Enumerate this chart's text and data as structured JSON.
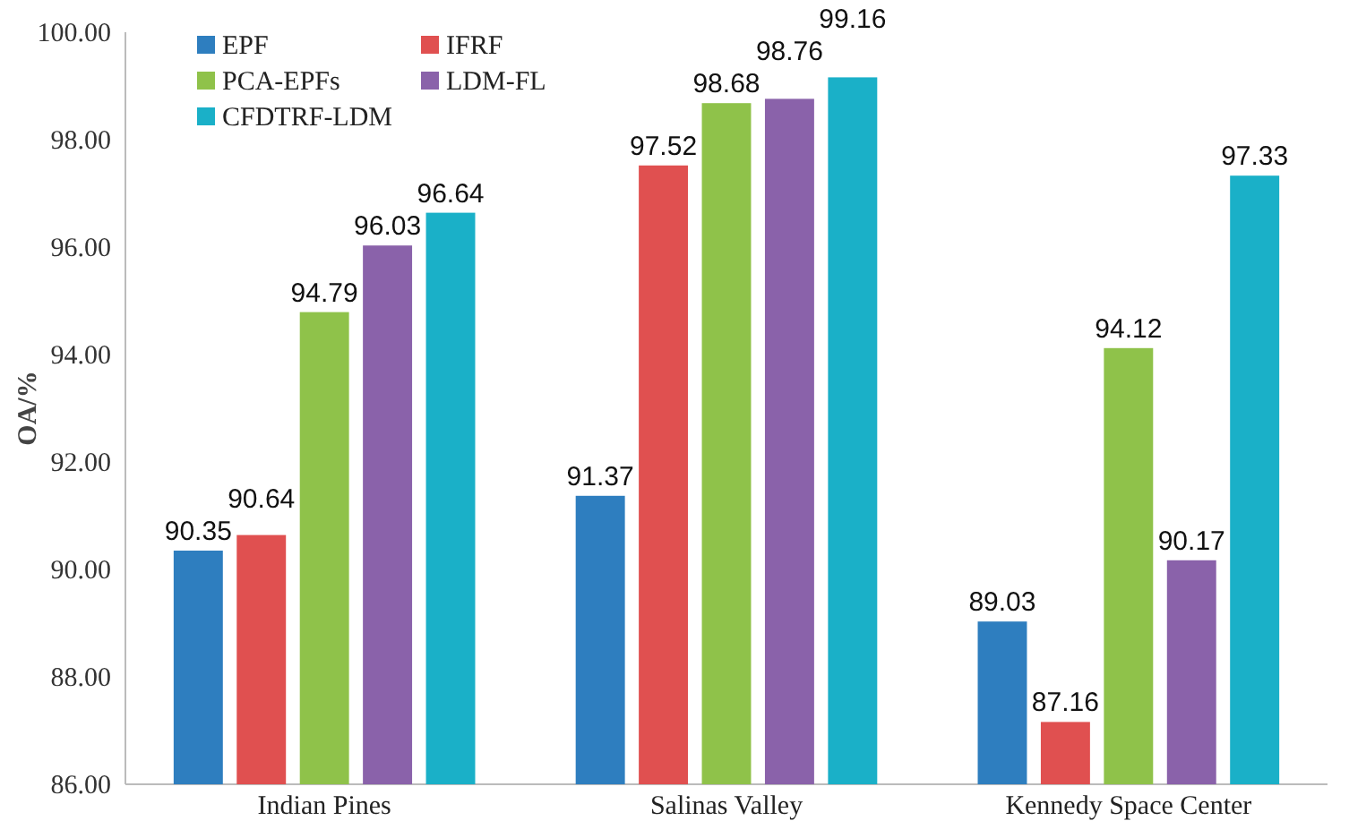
{
  "chart_data": {
    "type": "bar",
    "ylabel": "OA/%",
    "categories": [
      "Indian Pines",
      "Salinas Valley",
      "Kennedy Space Center"
    ],
    "series": [
      {
        "name": "EPF",
        "color": "#2e7ebf",
        "values": [
          90.35,
          91.37,
          89.03
        ]
      },
      {
        "name": "IFRF",
        "color": "#e05050",
        "values": [
          90.64,
          97.52,
          87.16
        ]
      },
      {
        "name": "PCA-EPFs",
        "color": "#8fc24a",
        "values": [
          94.79,
          98.68,
          94.12
        ]
      },
      {
        "name": "LDM-FL",
        "color": "#8a62aa",
        "values": [
          96.03,
          98.76,
          90.17
        ]
      },
      {
        "name": "CFDTRF-LDM",
        "color": "#1ab0c8",
        "values": [
          96.64,
          99.16,
          97.33
        ]
      }
    ],
    "ylim": [
      86,
      100
    ],
    "yticks": [
      {
        "value": 86,
        "label": "86.00"
      },
      {
        "value": 88,
        "label": "88.00"
      },
      {
        "value": 90,
        "label": "90.00"
      },
      {
        "value": 92,
        "label": "92.00"
      },
      {
        "value": 94,
        "label": "94.00"
      },
      {
        "value": 96,
        "label": "96.00"
      },
      {
        "value": 98,
        "label": "98.00"
      },
      {
        "value": 100,
        "label": "100.00"
      }
    ],
    "data_labels": true,
    "legend": "top left",
    "grid": false
  }
}
